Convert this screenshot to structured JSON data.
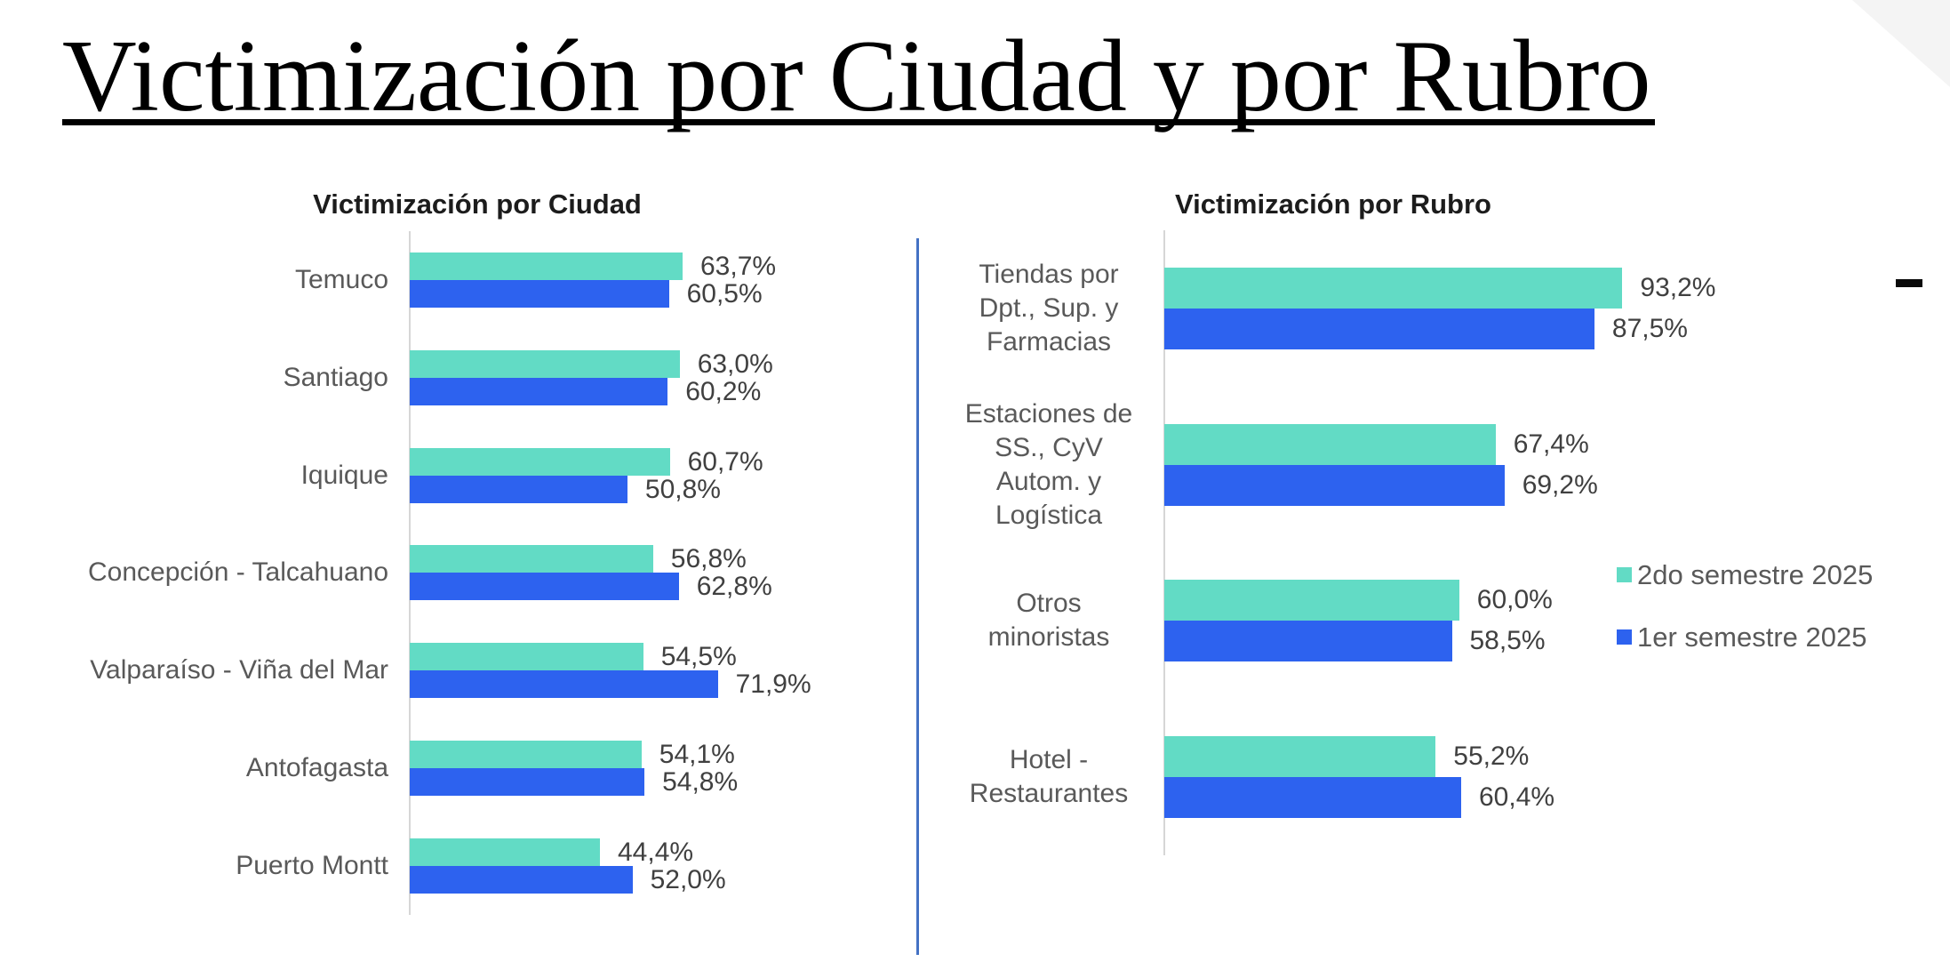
{
  "title": "Victimización por Ciudad y por Rubro",
  "top_right_marker": "-",
  "accent_colors": {
    "series_2do": "#62dbc5",
    "series_1er": "#2d62ef",
    "divider_blue": "#4472c4",
    "axis_gray": "#d6d6d6"
  },
  "legend": {
    "items": [
      {
        "label": "2do semestre 2025",
        "color": "#62dbc5"
      },
      {
        "label": "1er semestre 2025",
        "color": "#2d62ef"
      }
    ]
  },
  "chart_data": [
    {
      "id": "city",
      "type": "bar",
      "orientation": "horizontal",
      "title": "Victimización por Ciudad",
      "xlim": [
        0,
        100
      ],
      "grid": false,
      "categories": [
        "Temuco",
        "Santiago",
        "Iquique",
        "Concepción - Talcahuano",
        "Valparaíso - Viña del Mar",
        "Antofagasta",
        "Puerto Montt"
      ],
      "category_display_lines": [
        [
          "Temuco"
        ],
        [
          "Santiago"
        ],
        [
          "Iquique"
        ],
        [
          "Concepción - Talcahuano"
        ],
        [
          "Valparaíso - Viña del Mar"
        ],
        [
          "Antofagasta"
        ],
        [
          "Puerto Montt"
        ]
      ],
      "series": [
        {
          "name": "2do semestre 2025",
          "color": "#62dbc5",
          "values": [
            63.7,
            63.0,
            60.7,
            56.8,
            54.5,
            54.1,
            44.4
          ],
          "labels": [
            "63,7%",
            "63,0%",
            "60,7%",
            "56,8%",
            "54,5%",
            "54,1%",
            "44,4%"
          ]
        },
        {
          "name": "1er semestre 2025",
          "color": "#2d62ef",
          "values": [
            60.5,
            60.2,
            50.8,
            62.8,
            71.9,
            54.8,
            52.0
          ],
          "labels": [
            "60,5%",
            "60,2%",
            "50,8%",
            "62,8%",
            "71,9%",
            "54,8%",
            "52,0%"
          ]
        }
      ]
    },
    {
      "id": "rubro",
      "type": "bar",
      "orientation": "horizontal",
      "title": "Victimización por Rubro",
      "xlim": [
        0,
        100
      ],
      "grid": false,
      "categories": [
        "Tiendas por Dpt., Sup. y Farmacias",
        "Estaciones de SS., CyV Autom. y Logística",
        "Otros minoristas",
        "Hotel - Restaurantes"
      ],
      "category_display_lines": [
        [
          "Tiendas por",
          "Dpt., Sup. y",
          "Farmacias"
        ],
        [
          "Estaciones de",
          "SS., CyV",
          "Autom. y",
          "Logística"
        ],
        [
          "Otros",
          "minoristas"
        ],
        [
          "Hotel -",
          "Restaurantes"
        ]
      ],
      "series": [
        {
          "name": "2do semestre 2025",
          "color": "#62dbc5",
          "values": [
            93.2,
            67.4,
            60.0,
            55.2
          ],
          "labels": [
            "93,2%",
            "67,4%",
            "60,0%",
            "55,2%"
          ]
        },
        {
          "name": "1er semestre 2025",
          "color": "#2d62ef",
          "values": [
            87.5,
            69.2,
            58.5,
            60.4
          ],
          "labels": [
            "87,5%",
            "69,2%",
            "58,5%",
            "60,4%"
          ]
        }
      ]
    }
  ]
}
